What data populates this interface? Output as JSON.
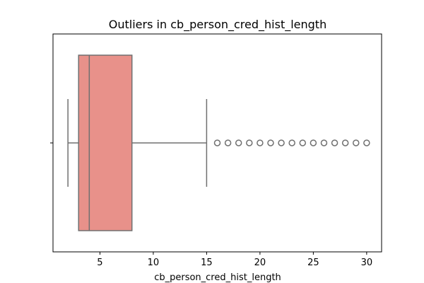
{
  "chart_data": {
    "type": "box",
    "title": "Outliers in cb_person_cred_hist_length",
    "xlabel": "cb_person_cred_hist_length",
    "ylabel": "",
    "xlim": [
      0.6,
      31.4
    ],
    "xticks": [
      5,
      10,
      15,
      20,
      25,
      30
    ],
    "box": {
      "whisker_low": 2,
      "q1": 3,
      "median": 4,
      "q3": 8,
      "whisker_high": 15,
      "fill_color": "#e8918a",
      "line_color": "#707070"
    },
    "outliers": [
      16,
      17,
      18,
      19,
      20,
      21,
      22,
      23,
      24,
      25,
      26,
      27,
      28,
      29,
      30
    ],
    "grid": false
  }
}
